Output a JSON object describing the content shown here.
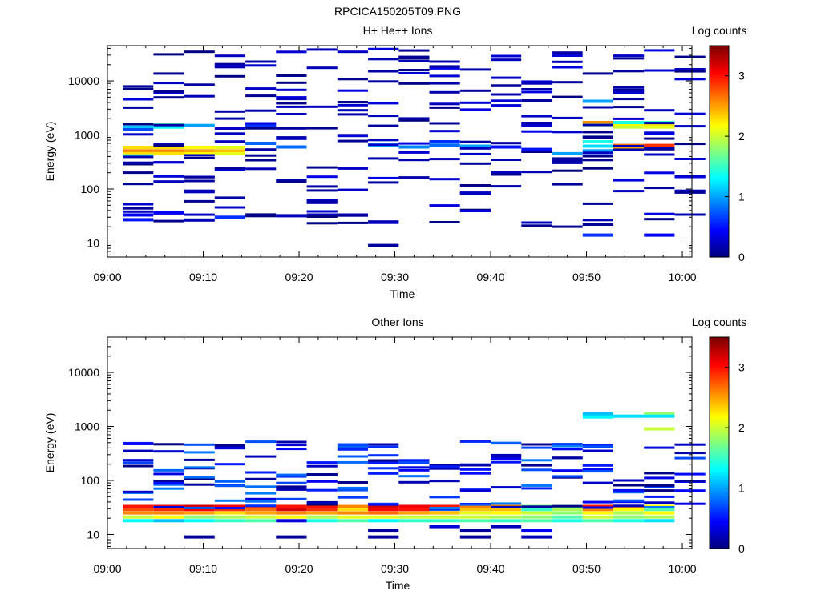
{
  "figure_title": "RPCICA150205T09.PNG",
  "chart_data": [
    {
      "type": "heatmap",
      "title": "H+ He++ Ions",
      "xlabel": "Time",
      "ylabel": "Energy (eV)",
      "x_ticks": [
        "09:00",
        "09:10",
        "09:20",
        "09:30",
        "09:40",
        "09:50",
        "10:00"
      ],
      "xlim": [
        "09:00",
        "10:01"
      ],
      "y_scale": "log",
      "ylim": [
        5.5,
        45000
      ],
      "y_ticks": [
        {
          "value": 10,
          "label": "10"
        },
        {
          "value": 100,
          "label": "100"
        },
        {
          "value": 1000,
          "label": "1000"
        },
        {
          "value": 10000,
          "label": "10000"
        }
      ],
      "colorbar": {
        "label": "Log counts",
        "range": [
          0,
          3.5
        ],
        "ticks": [
          "0",
          "1",
          "2",
          "3"
        ]
      },
      "time_bins": [
        "09:03:12",
        "09:06:24",
        "09:09:36",
        "09:12:48",
        "09:16:00",
        "09:19:12",
        "09:22:24",
        "09:25:36",
        "09:28:48",
        "09:32:00",
        "09:35:12",
        "09:38:24",
        "09:41:36",
        "09:44:48",
        "09:48:00",
        "09:51:12",
        "09:54:24",
        "09:57:36",
        "10:00:48"
      ],
      "bin_seed": 11,
      "cells": [
        [
          0,
          590,
          2.3
        ],
        [
          0,
          510,
          2.6
        ],
        [
          0,
          450,
          2.3
        ],
        [
          0,
          410,
          1.4
        ],
        [
          0,
          1400,
          1.1
        ],
        [
          0,
          1250,
          0.7
        ],
        [
          0,
          33,
          0.4
        ],
        [
          0,
          27,
          0.5
        ],
        [
          1,
          590,
          2.3
        ],
        [
          1,
          510,
          2.6
        ],
        [
          1,
          450,
          2.3
        ],
        [
          1,
          1550,
          1.6
        ],
        [
          1,
          1400,
          1.3
        ],
        [
          1,
          36,
          0.4
        ],
        [
          2,
          590,
          2.2
        ],
        [
          2,
          510,
          2.5
        ],
        [
          2,
          450,
          2.2
        ],
        [
          2,
          1500,
          1.0
        ],
        [
          3,
          590,
          2.1
        ],
        [
          3,
          510,
          2.4
        ],
        [
          3,
          450,
          2.1
        ],
        [
          3,
          30,
          0.6
        ],
        [
          4,
          700,
          0.8
        ],
        [
          4,
          1500,
          0.6
        ],
        [
          5,
          600,
          0.8
        ],
        [
          5,
          32,
          0.2
        ],
        [
          6,
          33,
          0.2
        ],
        [
          7,
          33,
          0.2
        ],
        [
          8,
          650,
          1.2
        ],
        [
          8,
          9,
          0.1
        ],
        [
          9,
          600,
          0.9
        ],
        [
          10,
          650,
          0.8
        ],
        [
          10,
          750,
          0.6
        ],
        [
          11,
          620,
          1.0
        ],
        [
          12,
          600,
          0.5
        ],
        [
          13,
          540,
          0.5
        ],
        [
          14,
          450,
          1.0
        ],
        [
          15,
          1700,
          2.6
        ],
        [
          15,
          1550,
          2.0
        ],
        [
          15,
          750,
          1.4
        ],
        [
          15,
          620,
          1.2
        ],
        [
          15,
          510,
          1.0
        ],
        [
          15,
          4200,
          1.0
        ],
        [
          15,
          14,
          0.6
        ],
        [
          16,
          1550,
          2.2
        ],
        [
          16,
          1400,
          2.0
        ],
        [
          16,
          640,
          2.7
        ],
        [
          16,
          560,
          2.5
        ],
        [
          16,
          1700,
          1.4
        ],
        [
          17,
          1550,
          2.3
        ],
        [
          17,
          1400,
          2.1
        ],
        [
          17,
          640,
          2.9
        ],
        [
          17,
          560,
          2.8
        ],
        [
          17,
          1700,
          1.5
        ],
        [
          17,
          14,
          0.4
        ]
      ]
    },
    {
      "type": "heatmap",
      "title": "Other Ions",
      "xlabel": "Time",
      "ylabel": "Energy (eV)",
      "x_ticks": [
        "09:00",
        "09:10",
        "09:20",
        "09:30",
        "09:40",
        "09:50",
        "10:00"
      ],
      "xlim": [
        "09:00",
        "10:01"
      ],
      "y_scale": "log",
      "ylim": [
        5.5,
        45000
      ],
      "y_ticks": [
        {
          "value": 10,
          "label": "10"
        },
        {
          "value": 100,
          "label": "100"
        },
        {
          "value": 1000,
          "label": "1000"
        },
        {
          "value": 10000,
          "label": "10000"
        }
      ],
      "colorbar": {
        "label": "Log counts",
        "range": [
          0,
          3.5
        ],
        "ticks": [
          "0",
          "1",
          "2",
          "3"
        ]
      },
      "time_bins": [
        "09:03:12",
        "09:06:24",
        "09:09:36",
        "09:12:48",
        "09:16:00",
        "09:19:12",
        "09:22:24",
        "09:25:36",
        "09:28:48",
        "09:32:00",
        "09:35:12",
        "09:38:24",
        "09:41:36",
        "09:44:48",
        "09:48:00",
        "09:51:12",
        "09:54:24",
        "09:57:36",
        "10:00:48"
      ],
      "bin_seed": 29,
      "cells": [
        [
          0,
          33,
          3.0
        ],
        [
          0,
          29,
          2.8
        ],
        [
          0,
          25,
          2.6
        ],
        [
          0,
          21,
          2.0
        ],
        [
          0,
          18,
          1.3
        ],
        [
          1,
          33,
          3.0
        ],
        [
          1,
          29,
          2.9
        ],
        [
          1,
          25,
          2.6
        ],
        [
          1,
          21,
          2.2
        ],
        [
          1,
          18,
          1.1
        ],
        [
          2,
          33,
          3.2
        ],
        [
          2,
          29,
          3.1
        ],
        [
          2,
          25,
          2.5
        ],
        [
          2,
          21,
          1.8
        ],
        [
          2,
          18,
          1.3
        ],
        [
          2,
          9,
          0.1
        ],
        [
          3,
          33,
          3.1
        ],
        [
          3,
          29,
          2.9
        ],
        [
          3,
          25,
          2.3
        ],
        [
          3,
          21,
          1.9
        ],
        [
          3,
          18,
          1.5
        ],
        [
          4,
          33,
          2.9
        ],
        [
          4,
          29,
          2.7
        ],
        [
          4,
          25,
          2.5
        ],
        [
          4,
          21,
          2.0
        ],
        [
          4,
          18,
          1.6
        ],
        [
          5,
          33,
          3.0
        ],
        [
          5,
          29,
          3.2
        ],
        [
          5,
          25,
          2.6
        ],
        [
          5,
          21,
          2.2
        ],
        [
          5,
          18,
          0.3
        ],
        [
          5,
          9,
          0.1
        ],
        [
          6,
          33,
          3.0
        ],
        [
          6,
          29,
          2.9
        ],
        [
          6,
          25,
          2.5
        ],
        [
          6,
          21,
          1.9
        ],
        [
          6,
          18,
          1.4
        ],
        [
          7,
          33,
          2.6
        ],
        [
          7,
          29,
          2.3
        ],
        [
          7,
          25,
          2.6
        ],
        [
          7,
          21,
          2.1
        ],
        [
          7,
          18,
          1.6
        ],
        [
          8,
          33,
          3.2
        ],
        [
          8,
          29,
          3.1
        ],
        [
          8,
          25,
          2.7
        ],
        [
          8,
          21,
          2.1
        ],
        [
          8,
          18,
          1.3
        ],
        [
          8,
          9,
          0.1
        ],
        [
          8,
          12,
          0.1
        ],
        [
          9,
          33,
          3.1
        ],
        [
          9,
          29,
          3.0
        ],
        [
          9,
          25,
          2.5
        ],
        [
          9,
          21,
          2.0
        ],
        [
          9,
          18,
          1.5
        ],
        [
          10,
          33,
          3.0
        ],
        [
          10,
          29,
          2.6
        ],
        [
          10,
          25,
          2.4
        ],
        [
          10,
          21,
          2.0
        ],
        [
          10,
          18,
          1.5
        ],
        [
          10,
          14,
          0.3
        ],
        [
          11,
          33,
          2.6
        ],
        [
          11,
          29,
          2.4
        ],
        [
          11,
          25,
          2.1
        ],
        [
          11,
          21,
          2.0
        ],
        [
          11,
          18,
          1.6
        ],
        [
          11,
          9,
          0.1
        ],
        [
          11,
          12,
          0.1
        ],
        [
          12,
          33,
          2.6
        ],
        [
          12,
          29,
          2.4
        ],
        [
          12,
          25,
          2.2
        ],
        [
          12,
          21,
          1.9
        ],
        [
          12,
          18,
          1.5
        ],
        [
          12,
          14,
          0.2
        ],
        [
          13,
          33,
          1.7
        ],
        [
          13,
          29,
          1.5
        ],
        [
          13,
          25,
          2.0
        ],
        [
          13,
          21,
          1.8
        ],
        [
          13,
          18,
          1.6
        ],
        [
          13,
          9,
          0.2
        ],
        [
          13,
          12,
          0.4
        ],
        [
          14,
          33,
          1.6
        ],
        [
          14,
          29,
          1.9
        ],
        [
          14,
          25,
          1.8
        ],
        [
          14,
          21,
          1.6
        ],
        [
          14,
          18,
          1.4
        ],
        [
          15,
          33,
          3.0
        ],
        [
          15,
          29,
          2.6
        ],
        [
          15,
          25,
          2.2
        ],
        [
          15,
          21,
          2.0
        ],
        [
          15,
          18,
          1.6
        ],
        [
          15,
          1700,
          1.1
        ],
        [
          15,
          1500,
          1.3
        ],
        [
          16,
          33,
          2.6
        ],
        [
          16,
          29,
          2.2
        ],
        [
          16,
          25,
          1.9
        ],
        [
          16,
          21,
          1.8
        ],
        [
          16,
          18,
          1.4
        ],
        [
          16,
          1550,
          1.2
        ],
        [
          17,
          33,
          2.2
        ],
        [
          17,
          29,
          1.6
        ],
        [
          17,
          25,
          2.2
        ],
        [
          17,
          21,
          1.9
        ],
        [
          17,
          18,
          1.2
        ],
        [
          17,
          1700,
          1.8
        ],
        [
          17,
          1550,
          1.2
        ],
        [
          17,
          900,
          2.0
        ]
      ]
    }
  ]
}
